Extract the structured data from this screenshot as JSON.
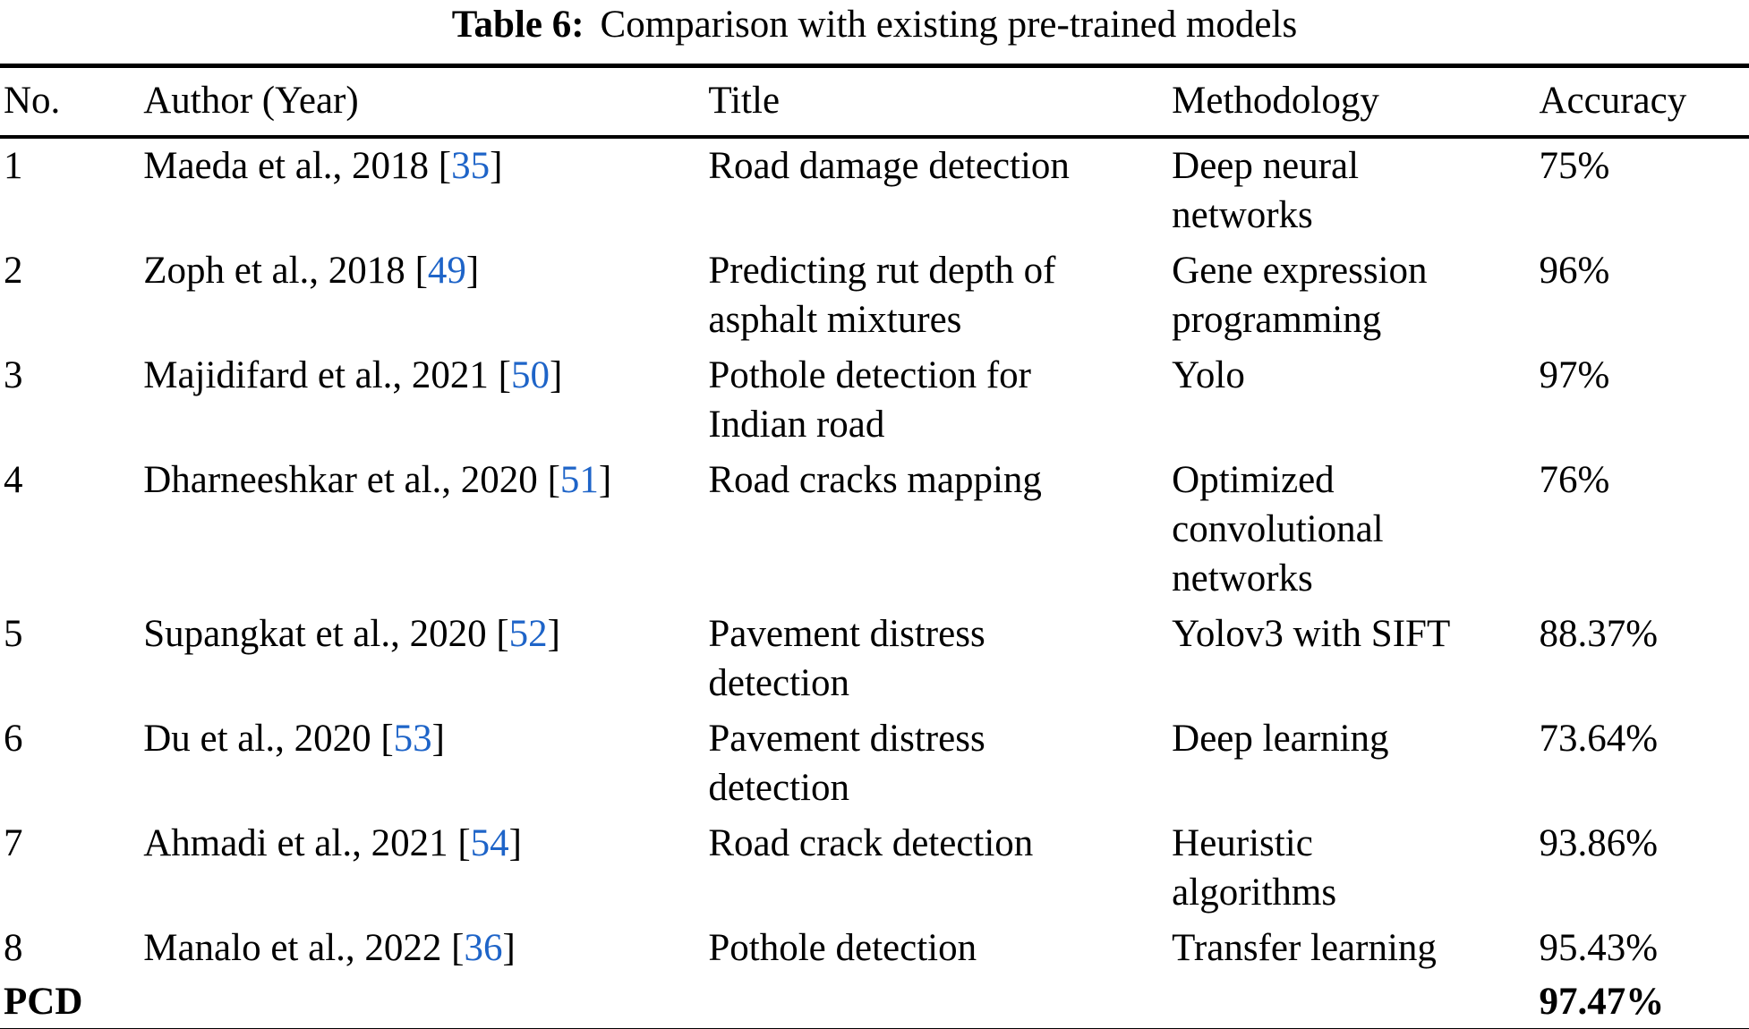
{
  "caption": {
    "label": "Table 6:",
    "text": "Comparison with existing pre-trained models"
  },
  "columns": [
    "No.",
    "Author (Year)",
    "Title",
    "Methodology",
    "Accuracy"
  ],
  "rows": [
    {
      "no": "1",
      "author": "Maeda et al., 2018",
      "ref_open": " [",
      "ref": "35",
      "ref_close": "]",
      "title": "Road damage detection",
      "methodology": "Deep neural\nnetworks",
      "accuracy": "75%"
    },
    {
      "no": "2",
      "author": "Zoph et al., 2018",
      "ref_open": " [",
      "ref": "49",
      "ref_close": "]",
      "title": "Predicting rut depth of\nasphalt mixtures",
      "methodology": "Gene expression\nprogramming",
      "accuracy": "96%"
    },
    {
      "no": "3",
      "author": "Majidifard et al., 2021",
      "ref_open": " [",
      "ref": "50",
      "ref_close": "]",
      "title": "Pothole detection for\nIndian road",
      "methodology": "Yolo",
      "accuracy": "97%"
    },
    {
      "no": "4",
      "author": "Dharneeshkar et al., 2020",
      "ref_open": " [",
      "ref": "51",
      "ref_close": "]",
      "title": "Road cracks mapping",
      "methodology": "Optimized\nconvolutional\nnetworks",
      "accuracy": "76%"
    },
    {
      "no": "5",
      "author": "Supangkat et al., 2020",
      "ref_open": " [",
      "ref": "52",
      "ref_close": "]",
      "title": "Pavement distress\ndetection",
      "methodology": "Yolov3 with SIFT",
      "accuracy": "88.37%"
    },
    {
      "no": "6",
      "author": "Du et al., 2020",
      "ref_open": " [",
      "ref": "53",
      "ref_close": "]",
      "title": "Pavement distress\ndetection",
      "methodology": "Deep learning",
      "accuracy": "73.64%"
    },
    {
      "no": "7",
      "author": "Ahmadi et al., 2021",
      "ref_open": " [",
      "ref": "54",
      "ref_close": "]",
      "title": "Road crack detection",
      "methodology": "Heuristic\nalgorithms",
      "accuracy": "93.86%"
    },
    {
      "no": "8",
      "author": "Manalo et al., 2022",
      "ref_open": " [",
      "ref": "36",
      "ref_close": "]",
      "title": "Pothole detection",
      "methodology": "Transfer learning",
      "accuracy": "95.43%"
    },
    {
      "no": "PCD",
      "author": "",
      "ref_open": "",
      "ref": "",
      "ref_close": "",
      "title": "",
      "methodology": "",
      "accuracy": "97.47%"
    }
  ],
  "colors": {
    "text": "#000000",
    "citation_link": "#1E64C8",
    "rules": "#000000",
    "background": "#ffffff"
  }
}
